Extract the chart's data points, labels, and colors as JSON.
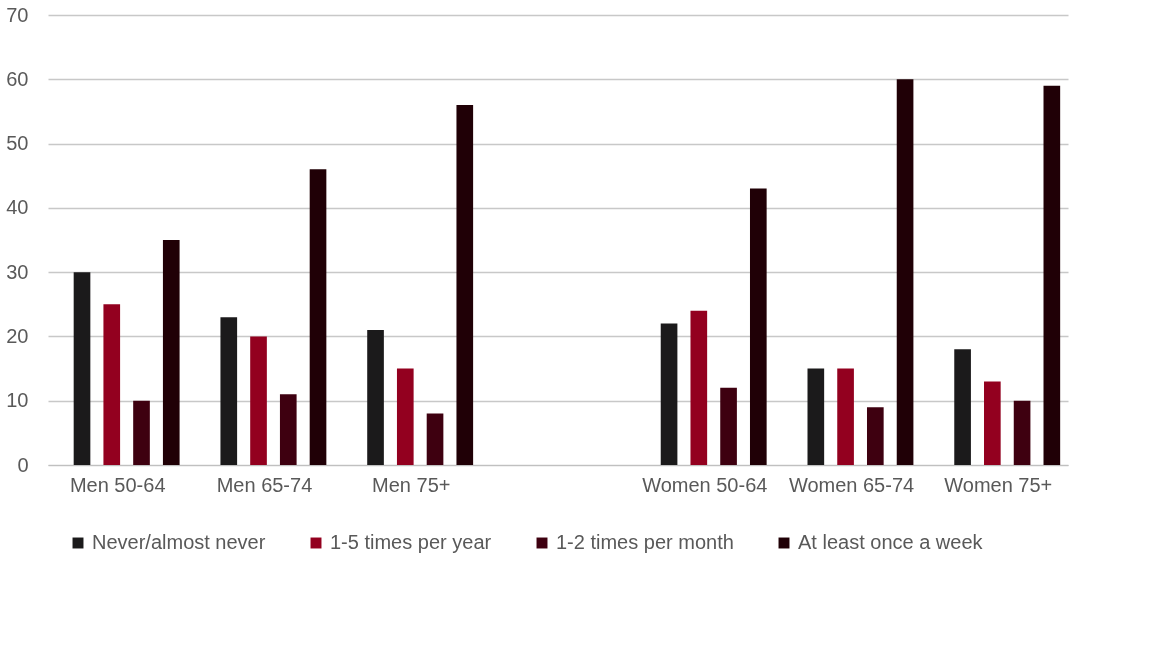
{
  "chart_data": {
    "type": "bar",
    "categories": [
      "Men 50-64",
      "Men 65-74",
      "Men 75+",
      null,
      "Women 50-64",
      "Women 65-74",
      "Women 75+"
    ],
    "series": [
      {
        "name": "Never/almost never",
        "color": "#1b1a1b",
        "values": [
          30,
          23,
          21,
          null,
          22,
          15,
          18
        ]
      },
      {
        "name": "1-5 times per year",
        "color": "#93001f",
        "values": [
          25,
          20,
          15,
          null,
          24,
          15,
          13
        ]
      },
      {
        "name": "1-2 times per month",
        "color": "#3e0010",
        "values": [
          10,
          11,
          8,
          null,
          12,
          9,
          10
        ]
      },
      {
        "name": "At least once a week",
        "color": "#200006",
        "values": [
          35,
          46,
          56,
          null,
          43,
          60,
          59
        ]
      }
    ],
    "ylim": [
      0,
      70
    ],
    "yticks": [
      0,
      10,
      20,
      30,
      40,
      50,
      60,
      70
    ],
    "grid": "y",
    "legend": "bottom"
  }
}
